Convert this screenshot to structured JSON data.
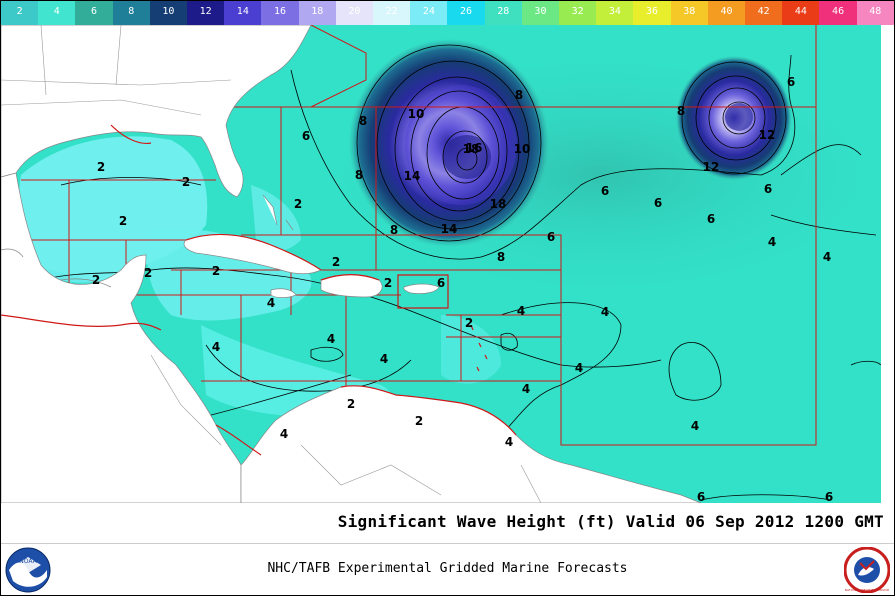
{
  "title": "Significant Wave Height  (ft)  Valid 06 Sep 2012 1200 GMT",
  "footer": "NHC/TAFB Experimental Gridded Marine Forecasts",
  "logos": {
    "left": "NOAA",
    "right": "NATIONAL WEATHER SERVICE"
  },
  "colorbar": {
    "labels": [
      "2",
      "4",
      "6",
      "8",
      "10",
      "12",
      "14",
      "16",
      "18",
      "20",
      "22",
      "24",
      "26",
      "28",
      "30",
      "32",
      "34",
      "36",
      "38",
      "40",
      "42",
      "44",
      "46",
      "48"
    ],
    "colors": [
      "#3ec9c9",
      "#40e4cf",
      "#32ad9a",
      "#1f7f99",
      "#153f74",
      "#1d1a8a",
      "#4a3fd0",
      "#7c6fe4",
      "#b0a8f0",
      "#e6e4fa",
      "#d8f7fd",
      "#7bebf6",
      "#19d9ee",
      "#3fe0c0",
      "#6be884",
      "#98ec52",
      "#c3ee3a",
      "#e9ee2c",
      "#f5c827",
      "#f39c21",
      "#ef6d1c",
      "#ea3c17",
      "#f0307a",
      "#f686c0"
    ]
  },
  "map": {
    "ocean_color": "#33e0c8",
    "land_color": "#ffffff",
    "gulf_color": "#6ff0ee",
    "contour_labels": [
      "2",
      "2",
      "2",
      "2",
      "2",
      "2",
      "2",
      "2",
      "2",
      "2",
      "2",
      "2",
      "4",
      "4",
      "4",
      "4",
      "4",
      "4",
      "4",
      "4",
      "4",
      "4",
      "4",
      "4",
      "4",
      "6",
      "6",
      "6",
      "6",
      "6",
      "6",
      "6",
      "6",
      "6",
      "6",
      "8",
      "8",
      "8",
      "8",
      "8",
      "8",
      "10",
      "10",
      "12",
      "12",
      "14",
      "14",
      "16",
      "18",
      "18"
    ]
  }
}
